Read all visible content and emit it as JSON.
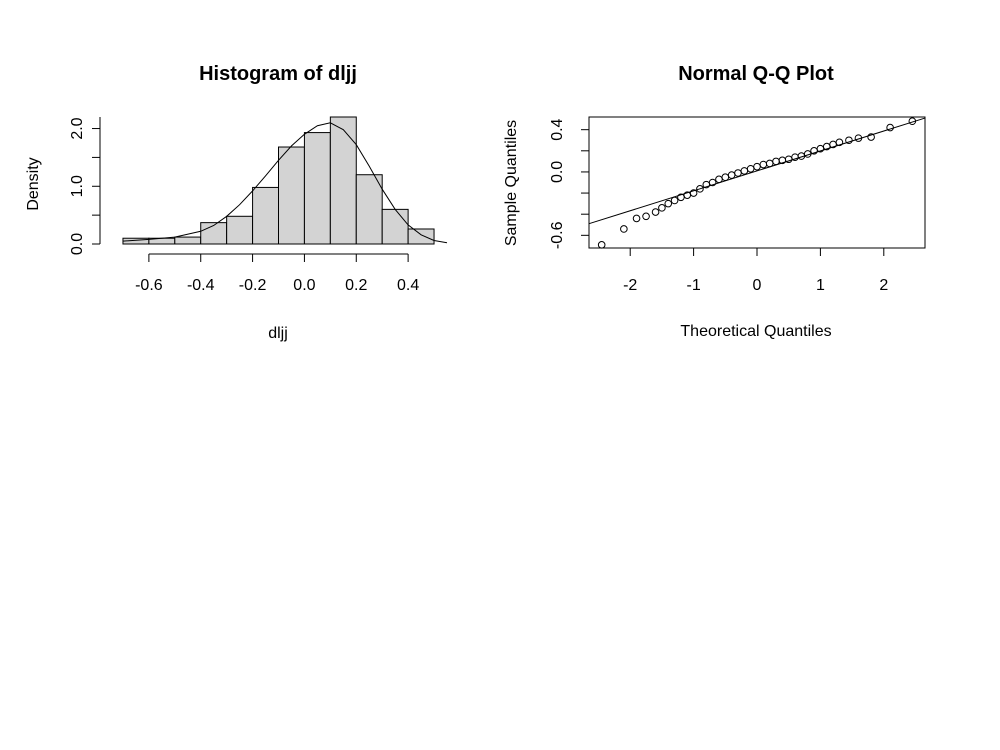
{
  "chart_data": [
    {
      "type": "bar",
      "title": "Histogram of dljj",
      "xlabel": "dljj",
      "ylabel": "Density",
      "xlim": [
        -0.75,
        0.55
      ],
      "ylim": [
        0,
        2.2
      ],
      "xticks": [
        "-0.6",
        "-0.4",
        "-0.2",
        "0.0",
        "0.2",
        "0.4"
      ],
      "yticks": [
        "0.0",
        "1.0",
        "2.0"
      ],
      "bins": [
        {
          "start": -0.7,
          "end": -0.6,
          "density": 0.1
        },
        {
          "start": -0.6,
          "end": -0.5,
          "density": 0.1
        },
        {
          "start": -0.5,
          "end": -0.4,
          "density": 0.12
        },
        {
          "start": -0.4,
          "end": -0.3,
          "density": 0.37
        },
        {
          "start": -0.3,
          "end": -0.2,
          "density": 0.48
        },
        {
          "start": -0.2,
          "end": -0.1,
          "density": 0.98
        },
        {
          "start": -0.1,
          "end": 0.0,
          "density": 1.68
        },
        {
          "start": 0.0,
          "end": 0.1,
          "density": 1.93
        },
        {
          "start": 0.1,
          "end": 0.2,
          "density": 2.2
        },
        {
          "start": 0.2,
          "end": 0.3,
          "density": 1.2
        },
        {
          "start": 0.3,
          "end": 0.4,
          "density": 0.6
        },
        {
          "start": 0.4,
          "end": 0.5,
          "density": 0.26
        }
      ],
      "density_curve": {
        "x": [
          -0.7,
          -0.6,
          -0.5,
          -0.4,
          -0.35,
          -0.3,
          -0.25,
          -0.2,
          -0.15,
          -0.1,
          -0.05,
          0.0,
          0.05,
          0.1,
          0.15,
          0.2,
          0.25,
          0.3,
          0.35,
          0.4,
          0.45,
          0.5,
          0.55
        ],
        "y": [
          0.05,
          0.08,
          0.12,
          0.22,
          0.32,
          0.48,
          0.68,
          0.92,
          1.18,
          1.45,
          1.7,
          1.9,
          2.05,
          2.1,
          1.98,
          1.72,
          1.35,
          0.95,
          0.6,
          0.33,
          0.16,
          0.06,
          0.02
        ]
      }
    },
    {
      "type": "scatter",
      "title": "Normal Q-Q Plot",
      "xlabel": "Theoretical Quantiles",
      "ylabel": "Sample Quantiles",
      "xlim": [
        -2.65,
        2.65
      ],
      "ylim": [
        -0.72,
        0.52
      ],
      "xticks": [
        "-2",
        "-1",
        "0",
        "1",
        "2"
      ],
      "yticks": [
        "-0.6",
        "0.0",
        "0.4"
      ],
      "y_minor_ticks": [
        -0.4,
        -0.2,
        0.2
      ],
      "reference_line": {
        "x": [
          -2.65,
          2.65
        ],
        "y": [
          -0.49,
          0.51
        ]
      },
      "points": {
        "x": [
          -2.45,
          -2.1,
          -1.9,
          -1.75,
          -1.6,
          -1.5,
          -1.4,
          -1.3,
          -1.2,
          -1.1,
          -1.0,
          -0.9,
          -0.8,
          -0.7,
          -0.6,
          -0.5,
          -0.4,
          -0.3,
          -0.2,
          -0.1,
          0.0,
          0.1,
          0.2,
          0.3,
          0.4,
          0.5,
          0.6,
          0.7,
          0.8,
          0.9,
          1.0,
          1.1,
          1.2,
          1.3,
          1.45,
          1.6,
          1.8,
          2.1,
          2.45
        ],
        "y": [
          -0.69,
          -0.54,
          -0.44,
          -0.42,
          -0.38,
          -0.34,
          -0.3,
          -0.27,
          -0.24,
          -0.22,
          -0.2,
          -0.16,
          -0.12,
          -0.1,
          -0.07,
          -0.05,
          -0.03,
          -0.01,
          0.01,
          0.03,
          0.05,
          0.07,
          0.08,
          0.1,
          0.11,
          0.12,
          0.14,
          0.15,
          0.17,
          0.2,
          0.22,
          0.24,
          0.26,
          0.28,
          0.3,
          0.32,
          0.33,
          0.42,
          0.48
        ]
      }
    }
  ]
}
